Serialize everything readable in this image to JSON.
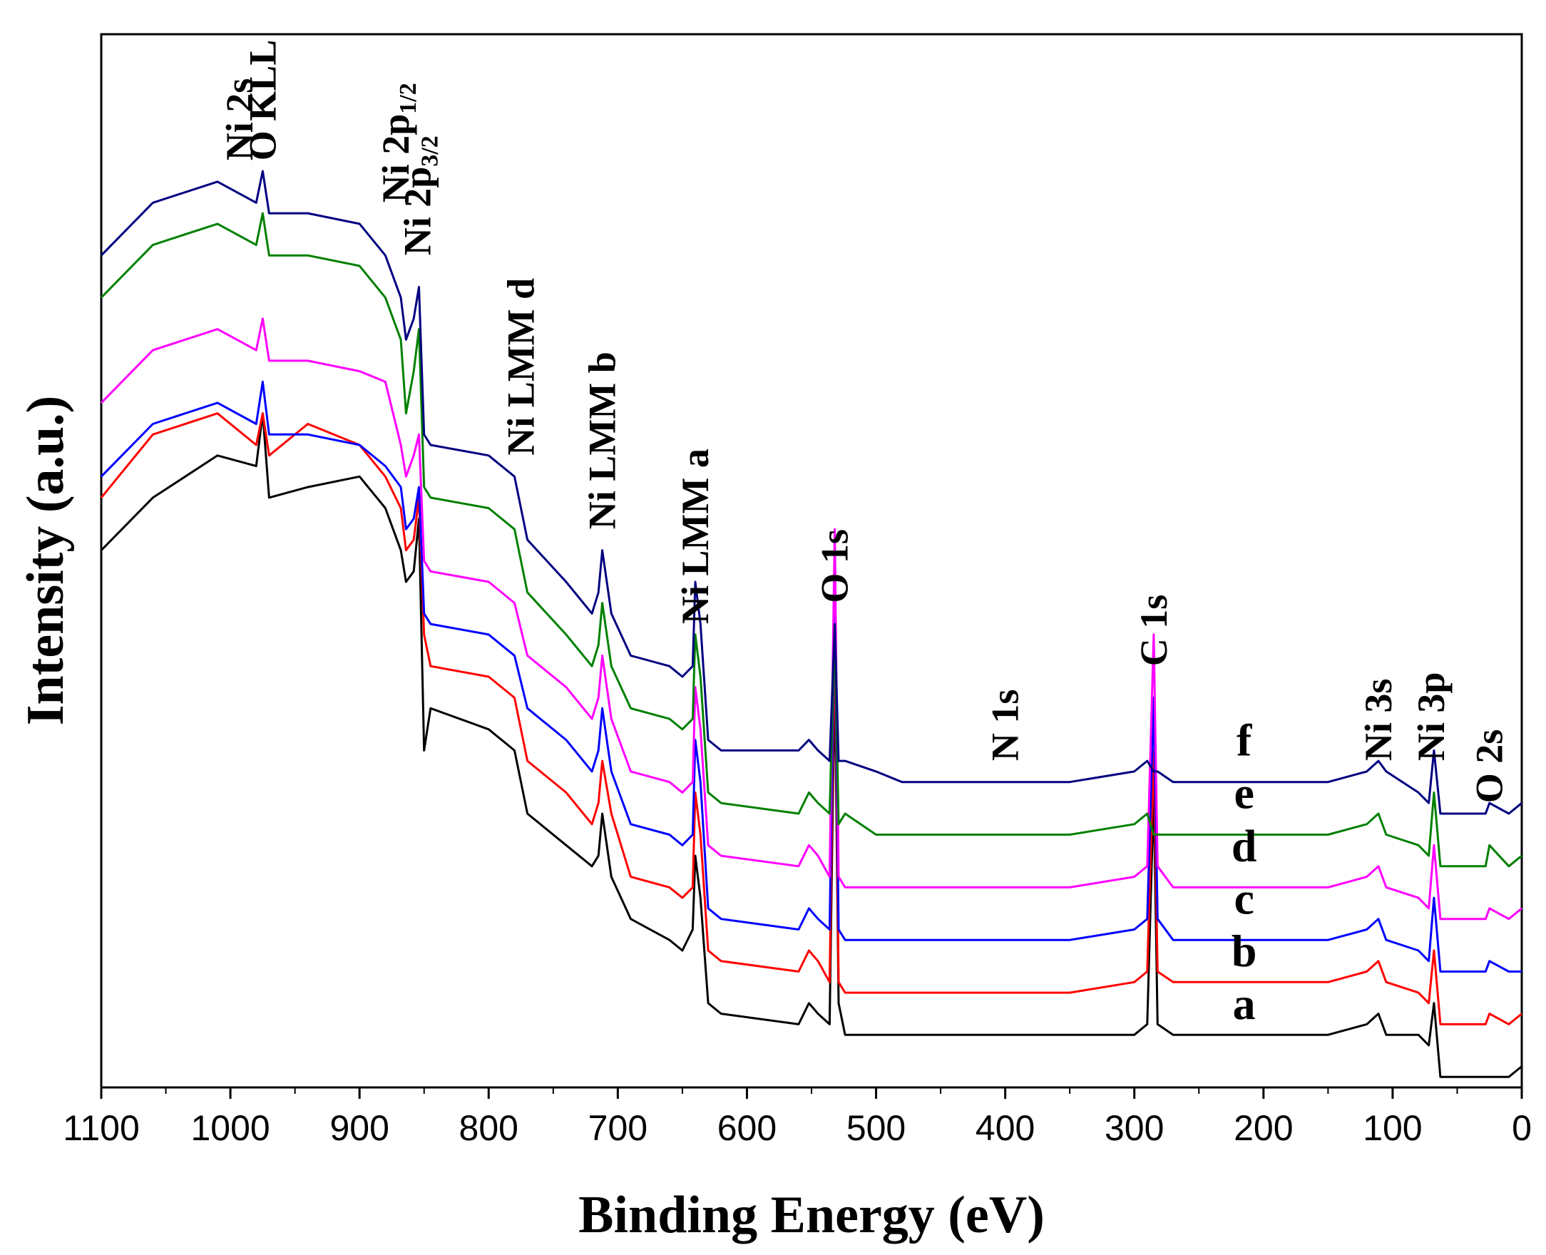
{
  "chart_data": {
    "type": "line",
    "title": "",
    "xlabel": "Binding Energy (eV)",
    "ylabel": "Intensity (a.u.)",
    "xlim": [
      1100,
      0
    ],
    "ylim": [
      0,
      100
    ],
    "x_reversed": true,
    "grid": false,
    "xticks": [
      1100,
      1000,
      900,
      800,
      700,
      600,
      500,
      400,
      300,
      200,
      100,
      0
    ],
    "x": [
      1100,
      1060,
      1010,
      980,
      975,
      970,
      940,
      900,
      880,
      868,
      864,
      858,
      854,
      850,
      845,
      800,
      780,
      770,
      740,
      720,
      715,
      712,
      705,
      690,
      660,
      650,
      642,
      640,
      636,
      630,
      620,
      560,
      552,
      545,
      536,
      532,
      529,
      524,
      500,
      480,
      450,
      400,
      350,
      300,
      290,
      285,
      282,
      270,
      200,
      150,
      120,
      111,
      105,
      80,
      72,
      68,
      63,
      40,
      28,
      25,
      10,
      0
    ],
    "series": [
      {
        "name": "a",
        "color": "#000000",
        "values": [
          51,
          56,
          60,
          59,
          64,
          56,
          57,
          58,
          55,
          51,
          48,
          49,
          54,
          32,
          36,
          34,
          32,
          26,
          23,
          21,
          22,
          26,
          20,
          16,
          14,
          13,
          15,
          22,
          18,
          8,
          7,
          6,
          8,
          7,
          6,
          40,
          8,
          5,
          5,
          5,
          5,
          5,
          5,
          5,
          6,
          28,
          6,
          5,
          5,
          5,
          6,
          7,
          5,
          5,
          4,
          8,
          1,
          1,
          1,
          1,
          1,
          2
        ]
      },
      {
        "name": "b",
        "color": "#ff0000",
        "values": [
          56,
          62,
          64,
          61,
          64,
          60,
          63,
          61,
          58,
          55,
          51,
          52,
          56,
          43,
          40,
          39,
          37,
          31,
          28,
          25,
          27,
          31,
          26,
          20,
          19,
          18,
          19,
          28,
          24,
          13,
          12,
          11,
          13,
          12,
          10,
          44,
          10,
          9,
          9,
          9,
          9,
          9,
          9,
          10,
          11,
          32,
          11,
          10,
          10,
          10,
          11,
          12,
          10,
          9,
          8,
          13,
          6,
          6,
          6,
          7,
          6,
          7
        ]
      },
      {
        "name": "c",
        "color": "#0000ff",
        "values": [
          58,
          63,
          65,
          63,
          67,
          62,
          62,
          61,
          59,
          57,
          53,
          54,
          57,
          45,
          44,
          43,
          41,
          36,
          33,
          30,
          32,
          36,
          30,
          25,
          24,
          23,
          24,
          33,
          29,
          17,
          16,
          15,
          17,
          16,
          15,
          47,
          15,
          14,
          14,
          14,
          14,
          14,
          14,
          15,
          16,
          37,
          16,
          14,
          14,
          14,
          15,
          16,
          14,
          13,
          12,
          18,
          11,
          11,
          11,
          12,
          11,
          11
        ]
      },
      {
        "name": "d",
        "color": "#ff00ff",
        "values": [
          65,
          70,
          72,
          70,
          73,
          69,
          69,
          68,
          67,
          61,
          58,
          60,
          62,
          50,
          49,
          48,
          46,
          41,
          38,
          35,
          37,
          41,
          35,
          30,
          29,
          28,
          29,
          38,
          34,
          23,
          22,
          21,
          23,
          22,
          20,
          53,
          20,
          19,
          19,
          19,
          19,
          19,
          19,
          20,
          21,
          43,
          21,
          19,
          19,
          19,
          20,
          21,
          19,
          18,
          17,
          23,
          16,
          16,
          16,
          17,
          16,
          17
        ]
      },
      {
        "name": "e",
        "color": "#008000",
        "values": [
          75,
          80,
          82,
          80,
          83,
          79,
          79,
          78,
          75,
          71,
          64,
          68,
          72,
          57,
          56,
          55,
          53,
          47,
          43,
          40,
          42,
          46,
          40,
          36,
          35,
          34,
          35,
          43,
          39,
          28,
          27,
          26,
          28,
          27,
          26,
          44,
          25,
          26,
          24,
          24,
          24,
          24,
          24,
          25,
          26,
          24,
          24,
          24,
          24,
          24,
          25,
          26,
          24,
          23,
          22,
          28,
          21,
          21,
          21,
          23,
          21,
          22
        ]
      },
      {
        "name": "f",
        "color": "#000080",
        "values": [
          79,
          84,
          86,
          84,
          87,
          83,
          83,
          82,
          79,
          75,
          71,
          73,
          76,
          62,
          61,
          60,
          58,
          52,
          48,
          45,
          47,
          51,
          45,
          41,
          40,
          39,
          40,
          48,
          44,
          33,
          32,
          32,
          33,
          32,
          31,
          44,
          31,
          31,
          30,
          29,
          29,
          29,
          29,
          30,
          31,
          30,
          30,
          29,
          29,
          29,
          30,
          31,
          30,
          28,
          27,
          32,
          26,
          26,
          26,
          27,
          26,
          27
        ]
      }
    ],
    "series_labels": [
      {
        "text": "a",
        "x": 215,
        "y": 6.5
      },
      {
        "text": "b",
        "x": 215,
        "y": 11.5
      },
      {
        "text": "c",
        "x": 215,
        "y": 16.5
      },
      {
        "text": "d",
        "x": 215,
        "y": 21.5
      },
      {
        "text": "e",
        "x": 215,
        "y": 26.5
      },
      {
        "text": "f",
        "x": 215,
        "y": 31.5
      }
    ],
    "annotations": [
      {
        "text": "Ni 2s",
        "x": 993,
        "y": 88,
        "rotated": true
      },
      {
        "text": "O KLL",
        "x": 975,
        "y": 88,
        "rotated": true
      },
      {
        "text": "Ni 2p",
        "sub": "1/2",
        "x": 872,
        "y": 84,
        "rotated": true
      },
      {
        "text": "Ni 2p",
        "sub": "3/2",
        "x": 855,
        "y": 79,
        "rotated": true
      },
      {
        "text": "Ni LMM d",
        "x": 775,
        "y": 60,
        "rotated": true
      },
      {
        "text": "Ni LMM b",
        "x": 712,
        "y": 53,
        "rotated": true
      },
      {
        "text": "Ni LMM a",
        "x": 640,
        "y": 44,
        "rotated": true
      },
      {
        "text": "O 1s",
        "x": 532,
        "y": 46,
        "rotated": true
      },
      {
        "text": "N 1s",
        "x": 400,
        "y": 31,
        "rotated": true
      },
      {
        "text": "C 1s",
        "x": 285,
        "y": 40,
        "rotated": true
      },
      {
        "text": "Ni 3s",
        "x": 111,
        "y": 31,
        "rotated": true
      },
      {
        "text": "Ni 3p",
        "x": 70,
        "y": 31,
        "rotated": true
      },
      {
        "text": "O 2s",
        "x": 25,
        "y": 27,
        "rotated": true
      }
    ]
  }
}
